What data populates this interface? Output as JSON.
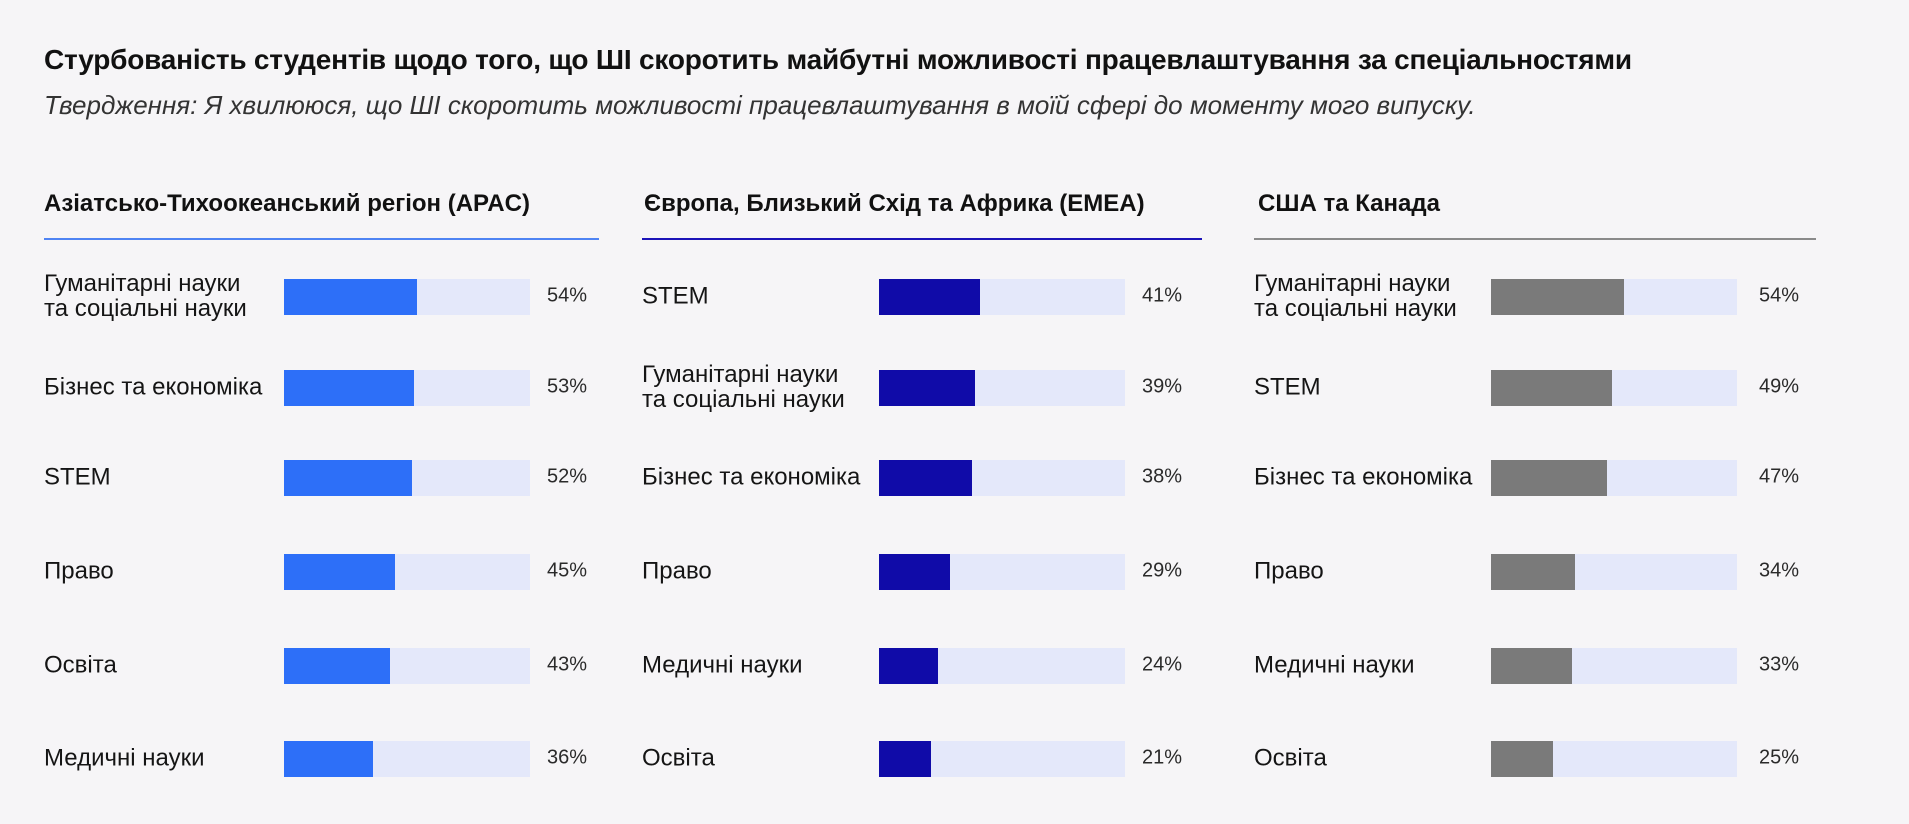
{
  "title": "Стурбованість студентів щодо того, що ШІ скоротить майбутні можливості працевлаштування за спеціальностями",
  "subtitle": "Твердження: Я хвилююся, що ШІ скоротить можливості працевлаштування в моїй сфері до моменту мого випуску.",
  "colors": {
    "background": "#f6f5f7",
    "track": "#e4e8fa",
    "apac": "#2d6ff8",
    "emea": "#100ba8",
    "na": "#7a7a7a"
  },
  "chart_data": [
    {
      "type": "bar",
      "orientation": "horizontal",
      "title": "Азіатсько-Тихоокеанський регіон (APAC)",
      "color": "#2d6ff8",
      "xlim": [
        0,
        100
      ],
      "categories": [
        "Гуманітарні науки\nта соціальні науки",
        "Бізнес та економіка",
        "STEM",
        "Право",
        "Освіта",
        "Медичні науки"
      ],
      "values": [
        54,
        53,
        52,
        45,
        43,
        36
      ],
      "value_labels": [
        "54%",
        "53%",
        "52%",
        "45%",
        "43%",
        "36%"
      ]
    },
    {
      "type": "bar",
      "orientation": "horizontal",
      "title": "Європа, Близький Схід та Африка (EMEA)",
      "color": "#100ba8",
      "xlim": [
        0,
        100
      ],
      "categories": [
        "STEM",
        "Гуманітарні науки\nта соціальні науки",
        "Бізнес та економіка",
        "Право",
        "Медичні науки",
        "Освіта"
      ],
      "values": [
        41,
        39,
        38,
        29,
        24,
        21
      ],
      "value_labels": [
        "41%",
        "39%",
        "38%",
        "29%",
        "24%",
        "21%"
      ]
    },
    {
      "type": "bar",
      "orientation": "horizontal",
      "title": "США та Канада",
      "color": "#7a7a7a",
      "xlim": [
        0,
        100
      ],
      "categories": [
        "Гуманітарні науки\nта соціальні науки",
        "STEM",
        "Бізнес та економіка",
        "Право",
        "Медичні науки",
        "Освіта"
      ],
      "values": [
        54,
        49,
        47,
        34,
        33,
        25
      ],
      "value_labels": [
        "54%",
        "49%",
        "47%",
        "34%",
        "33%",
        "25%"
      ]
    }
  ]
}
